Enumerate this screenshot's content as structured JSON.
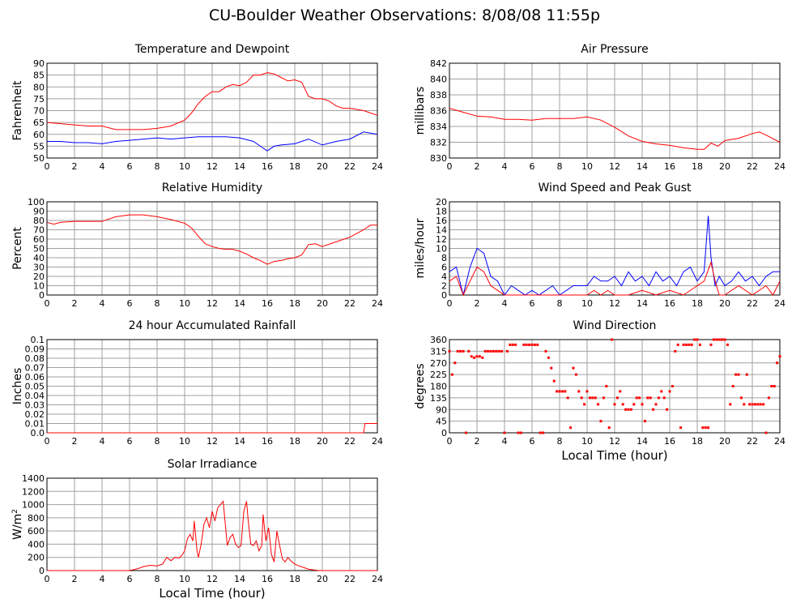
{
  "page": {
    "title": "CU-Boulder Weather Observations: 8/08/08 11:55p"
  },
  "colors": {
    "red": "#ff0000",
    "blue": "#0000ff",
    "grid": "#a0a0a0",
    "frame": "#000000"
  },
  "chart_data": [
    {
      "id": "temp",
      "type": "line",
      "title": "Temperature and Dewpoint",
      "xlabel": "",
      "ylabel": "Fahrenheit",
      "xlim": [
        0,
        24
      ],
      "ylim": [
        50,
        90
      ],
      "xticks": [
        0,
        2,
        4,
        6,
        8,
        10,
        12,
        14,
        16,
        18,
        20,
        22,
        24
      ],
      "yticks": [
        50,
        55,
        60,
        65,
        70,
        75,
        80,
        85,
        90
      ],
      "grid": true,
      "series": [
        {
          "color": "#ff0000",
          "x": [
            0,
            1,
            2,
            3,
            4,
            5,
            6,
            7,
            8,
            9,
            10,
            10.5,
            11,
            11.5,
            12,
            12.5,
            13,
            13.5,
            14,
            14.5,
            15,
            15.5,
            16,
            16.5,
            17,
            17.5,
            18,
            18.5,
            19,
            19.5,
            20,
            20.5,
            21,
            21.5,
            22,
            22.5,
            23,
            23.5,
            24
          ],
          "y": [
            65,
            64.5,
            64,
            63.5,
            63.5,
            62,
            62,
            62,
            62.5,
            63.5,
            66,
            69,
            73,
            76,
            78,
            78,
            80,
            81,
            80.5,
            82,
            85,
            85,
            86,
            85.5,
            84,
            82.5,
            83,
            82,
            76,
            75,
            75,
            74,
            72,
            71,
            71,
            70.5,
            70,
            69,
            68
          ]
        },
        {
          "color": "#0000ff",
          "x": [
            0,
            1,
            2,
            3,
            4,
            5,
            6,
            7,
            8,
            9,
            10,
            11,
            12,
            13,
            14,
            15,
            15.5,
            16,
            16.5,
            17,
            18,
            19,
            20,
            21,
            22,
            23,
            24
          ],
          "y": [
            57,
            57,
            56.5,
            56.5,
            56,
            57,
            57.5,
            58,
            58.5,
            58,
            58.5,
            59,
            59,
            59,
            58.5,
            57,
            55,
            53,
            55,
            55.5,
            56,
            58,
            55.5,
            57,
            58,
            61,
            60
          ]
        }
      ]
    },
    {
      "id": "pressure",
      "type": "line",
      "title": "Air Pressure",
      "xlabel": "",
      "ylabel": "millibars",
      "xlim": [
        0,
        24
      ],
      "ylim": [
        830,
        842
      ],
      "xticks": [
        0,
        2,
        4,
        6,
        8,
        10,
        12,
        14,
        16,
        18,
        20,
        22,
        24
      ],
      "yticks": [
        830,
        832,
        834,
        836,
        838,
        840,
        842
      ],
      "grid": true,
      "series": [
        {
          "color": "#ff0000",
          "x": [
            0,
            1,
            2,
            3,
            4,
            5,
            6,
            7,
            8,
            9,
            10,
            11,
            12,
            13,
            14,
            15,
            16,
            17,
            18,
            18.5,
            19,
            19.5,
            20,
            21,
            22,
            22.5,
            23,
            24
          ],
          "y": [
            836.3,
            835.8,
            835.3,
            835.2,
            834.9,
            834.9,
            834.8,
            835,
            835,
            835,
            835.2,
            834.8,
            833.9,
            832.8,
            832.1,
            831.8,
            831.6,
            831.3,
            831.1,
            831.1,
            831.9,
            831.5,
            832.2,
            832.5,
            833.1,
            833.3,
            832.9,
            832
          ]
        }
      ]
    },
    {
      "id": "humidity",
      "type": "line",
      "title": "Relative Humidity",
      "xlabel": "",
      "ylabel": "Percent",
      "xlim": [
        0,
        24
      ],
      "ylim": [
        0,
        100
      ],
      "xticks": [
        0,
        2,
        4,
        6,
        8,
        10,
        12,
        14,
        16,
        18,
        20,
        22,
        24
      ],
      "yticks": [
        0,
        10,
        20,
        30,
        40,
        50,
        60,
        70,
        80,
        90,
        100
      ],
      "grid": true,
      "series": [
        {
          "color": "#ff0000",
          "x": [
            0,
            0.5,
            1,
            2,
            3,
            4,
            5,
            6,
            7,
            8,
            9,
            10,
            10.5,
            11,
            11.5,
            12,
            12.5,
            13,
            13.5,
            14,
            14.5,
            15,
            15.5,
            16,
            16.5,
            17,
            17.5,
            18,
            18.5,
            19,
            19.5,
            20,
            21,
            22,
            23,
            23.5,
            24
          ],
          "y": [
            78,
            76,
            78,
            79,
            79,
            79,
            84,
            86,
            86,
            84,
            81,
            77,
            72,
            63,
            55,
            52,
            50,
            49,
            49,
            47,
            44,
            40,
            37,
            33,
            36,
            37,
            39,
            40,
            43,
            54,
            55,
            52,
            57,
            62,
            70,
            75,
            75
          ]
        }
      ]
    },
    {
      "id": "wind",
      "type": "line",
      "title": "Wind Speed and Peak Gust",
      "xlabel": "",
      "ylabel": "miles/hour",
      "xlim": [
        0,
        24
      ],
      "ylim": [
        0,
        20
      ],
      "xticks": [
        0,
        2,
        4,
        6,
        8,
        10,
        12,
        14,
        16,
        18,
        20,
        22,
        24
      ],
      "yticks": [
        0,
        2,
        4,
        6,
        8,
        10,
        12,
        14,
        16,
        18,
        20
      ],
      "grid": true,
      "series": [
        {
          "color": "#0000ff",
          "x": [
            0,
            0.5,
            1,
            1.5,
            2,
            2.5,
            3,
            3.5,
            4,
            4.5,
            5,
            5.5,
            6,
            6.5,
            7,
            7.5,
            8,
            8.5,
            9,
            9.5,
            10,
            10.5,
            11,
            11.5,
            12,
            12.5,
            13,
            13.5,
            14,
            14.5,
            15,
            15.5,
            16,
            16.5,
            17,
            17.5,
            18,
            18.5,
            18.8,
            19,
            19.3,
            19.6,
            20,
            20.5,
            21,
            21.5,
            22,
            22.5,
            23,
            23.5,
            24
          ],
          "y": [
            5,
            6,
            0,
            6,
            10,
            9,
            4,
            3,
            0,
            2,
            1,
            0,
            1,
            0,
            1,
            2,
            0,
            1,
            2,
            2,
            2,
            4,
            3,
            3,
            4,
            2,
            5,
            3,
            4,
            2,
            5,
            3,
            4,
            2,
            5,
            6,
            3,
            5,
            17,
            8,
            2,
            4,
            2,
            3,
            5,
            3,
            4,
            2,
            4,
            5,
            5
          ]
        },
        {
          "color": "#ff0000",
          "x": [
            0,
            0.5,
            1,
            1.5,
            2,
            2.5,
            3,
            3.5,
            4,
            5,
            6,
            7,
            8,
            9,
            10,
            10.5,
            11,
            11.5,
            12,
            13,
            14,
            15,
            16,
            17,
            18,
            18.5,
            19,
            19.3,
            19.6,
            20,
            21,
            22,
            23,
            23.5,
            24
          ],
          "y": [
            3,
            4,
            0,
            3,
            6,
            5,
            2,
            1,
            0,
            0,
            0,
            0,
            0,
            0,
            0,
            1,
            0,
            1,
            0,
            0,
            1,
            0,
            1,
            0,
            2,
            3,
            7,
            3,
            0,
            0,
            2,
            0,
            2,
            0,
            3
          ]
        }
      ]
    },
    {
      "id": "rain",
      "type": "line",
      "title": "24 hour Accumulated Rainfall",
      "xlabel": "",
      "ylabel": "Inches",
      "xlim": [
        0,
        24
      ],
      "ylim": [
        0,
        0.1
      ],
      "xticks": [
        0,
        2,
        4,
        6,
        8,
        10,
        12,
        14,
        16,
        18,
        20,
        22,
        24
      ],
      "yticks": [
        0,
        0.01,
        0.02,
        0.03,
        0.04,
        0.05,
        0.06,
        0.07,
        0.08,
        0.09,
        0.1
      ],
      "yticklabels": [
        "0.0",
        "0.01",
        "0.02",
        "0.03",
        "0.04",
        "0.05",
        "0.06",
        "0.07",
        "0.08",
        "0.09",
        "0.1"
      ],
      "grid": true,
      "series": [
        {
          "color": "#ff0000",
          "x": [
            0,
            23.0,
            23.1,
            24
          ],
          "y": [
            0,
            0,
            0.01,
            0.01
          ]
        }
      ]
    },
    {
      "id": "winddir",
      "type": "scatter",
      "title": "Wind Direction",
      "xlabel": "Local Time (hour)",
      "ylabel": "degrees",
      "xlim": [
        0,
        24
      ],
      "ylim": [
        0,
        360
      ],
      "xticks": [
        0,
        2,
        4,
        6,
        8,
        10,
        12,
        14,
        16,
        18,
        20,
        22,
        24
      ],
      "yticks": [
        0,
        45,
        90,
        135,
        180,
        225,
        270,
        315,
        360
      ],
      "grid": true,
      "series": [
        {
          "color": "#ff0000",
          "x": [
            0,
            0.2,
            0.4,
            0.6,
            0.8,
            1.0,
            1.2,
            1.4,
            1.6,
            1.8,
            2.0,
            2.2,
            2.4,
            2.6,
            2.8,
            3.0,
            3.2,
            3.4,
            3.6,
            3.8,
            4.0,
            4.2,
            4.4,
            4.6,
            4.8,
            5.0,
            5.2,
            5.4,
            5.6,
            5.8,
            6.0,
            6.2,
            6.4,
            6.6,
            6.8,
            7.0,
            7.2,
            7.4,
            7.6,
            7.8,
            8.0,
            8.2,
            8.4,
            8.6,
            8.8,
            9.0,
            9.2,
            9.4,
            9.6,
            9.8,
            10.0,
            10.2,
            10.4,
            10.6,
            10.8,
            11.0,
            11.2,
            11.4,
            11.6,
            11.8,
            12.0,
            12.2,
            12.4,
            12.6,
            12.8,
            13.0,
            13.2,
            13.4,
            13.6,
            13.8,
            14.0,
            14.2,
            14.4,
            14.6,
            14.8,
            15.0,
            15.2,
            15.4,
            15.6,
            15.8,
            16.0,
            16.2,
            16.4,
            16.6,
            16.8,
            17.0,
            17.2,
            17.4,
            17.6,
            17.8,
            18.0,
            18.2,
            18.4,
            18.6,
            18.8,
            19.0,
            19.2,
            19.4,
            19.6,
            19.8,
            20.0,
            20.2,
            20.4,
            20.6,
            20.8,
            21.0,
            21.2,
            21.4,
            21.6,
            21.8,
            22.0,
            22.2,
            22.4,
            22.6,
            22.8,
            23.0,
            23.2,
            23.4,
            23.6,
            23.8,
            24.0
          ],
          "y": [
            315,
            225,
            270,
            315,
            315,
            315,
            0,
            315,
            295,
            290,
            295,
            295,
            290,
            315,
            315,
            315,
            315,
            315,
            315,
            315,
            0,
            315,
            340,
            340,
            340,
            0,
            0,
            340,
            340,
            340,
            340,
            340,
            340,
            0,
            0,
            315,
            290,
            250,
            200,
            160,
            160,
            160,
            160,
            135,
            20,
            250,
            225,
            160,
            135,
            110,
            160,
            135,
            135,
            135,
            110,
            45,
            135,
            180,
            20,
            360,
            110,
            135,
            160,
            110,
            90,
            90,
            90,
            110,
            135,
            135,
            110,
            45,
            135,
            135,
            90,
            110,
            135,
            160,
            135,
            90,
            160,
            180,
            315,
            340,
            20,
            340,
            340,
            340,
            340,
            360,
            360,
            340,
            20,
            20,
            20,
            340,
            360,
            360,
            360,
            360,
            360,
            340,
            110,
            180,
            225,
            225,
            135,
            110,
            225,
            110,
            110,
            110,
            110,
            110,
            110,
            0,
            135,
            180,
            180,
            270,
            295
          ]
        }
      ]
    },
    {
      "id": "solar",
      "type": "line",
      "title": "Solar Irradiance",
      "xlabel": "Local Time (hour)",
      "ylabel": "W/m",
      "ylabel_sup": "2",
      "xlim": [
        0,
        24
      ],
      "ylim": [
        0,
        1400
      ],
      "xticks": [
        0,
        2,
        4,
        6,
        8,
        10,
        12,
        14,
        16,
        18,
        20,
        22,
        24
      ],
      "yticks": [
        0,
        200,
        400,
        600,
        800,
        1000,
        1200,
        1400
      ],
      "grid": true,
      "series": [
        {
          "color": "#ff0000",
          "x": [
            0,
            5.9,
            6.2,
            6.6,
            7,
            7.5,
            8,
            8.4,
            8.7,
            9,
            9.3,
            9.6,
            9.8,
            10,
            10.2,
            10.4,
            10.6,
            10.7,
            10.9,
            11.0,
            11.2,
            11.4,
            11.6,
            11.8,
            12,
            12.2,
            12.4,
            12.6,
            12.8,
            13,
            13.1,
            13.3,
            13.5,
            13.7,
            13.9,
            14.1,
            14.3,
            14.5,
            14.6,
            14.8,
            15,
            15.2,
            15.4,
            15.6,
            15.7,
            15.9,
            16.1,
            16.3,
            16.5,
            16.7,
            16.9,
            17.1,
            17.3,
            17.5,
            17.7,
            18,
            18.3,
            18.6,
            19,
            19.4,
            19.8,
            20.2,
            24
          ],
          "y": [
            0,
            0,
            10,
            30,
            60,
            80,
            70,
            100,
            200,
            150,
            200,
            190,
            230,
            300,
            480,
            550,
            450,
            750,
            300,
            200,
            400,
            700,
            800,
            650,
            900,
            750,
            950,
            1000,
            1050,
            600,
            380,
            500,
            550,
            400,
            350,
            380,
            900,
            1050,
            800,
            400,
            380,
            450,
            300,
            380,
            850,
            450,
            650,
            250,
            130,
            600,
            380,
            180,
            130,
            200,
            150,
            100,
            70,
            50,
            20,
            10,
            0,
            0,
            0
          ]
        }
      ]
    }
  ]
}
